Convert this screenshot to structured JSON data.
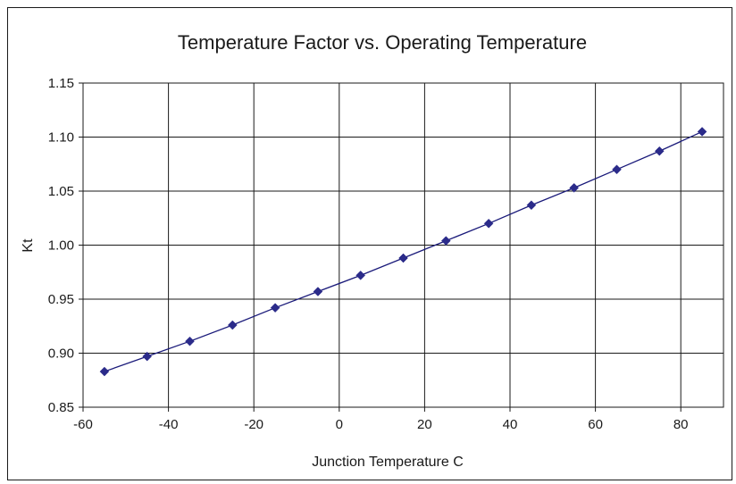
{
  "chart_data": {
    "type": "line",
    "title": "Temperature Factor vs. Operating Temperature",
    "xlabel": "Junction Temperature C",
    "ylabel": "Kt",
    "xlim": [
      -60,
      90
    ],
    "ylim": [
      0.85,
      1.15
    ],
    "xticks": [
      "-60",
      "-40",
      "-20",
      "0",
      "20",
      "40",
      "60",
      "80"
    ],
    "xtick_values": [
      -60,
      -40,
      -20,
      0,
      20,
      40,
      60,
      80
    ],
    "yticks": [
      "0.85",
      "0.90",
      "0.95",
      "1.00",
      "1.05",
      "1.10",
      "1.15"
    ],
    "ytick_values": [
      0.85,
      0.9,
      0.95,
      1.0,
      1.05,
      1.1,
      1.15
    ],
    "grid": true,
    "line_color": "#1a1a7a",
    "marker_color": "#2b2b8a",
    "marker": "diamond",
    "series": [
      {
        "x": [
          -55,
          -45,
          -35,
          -25,
          -15,
          -5,
          5,
          15,
          25,
          35,
          45,
          55,
          65,
          75,
          85
        ],
        "values": [
          0.883,
          0.897,
          0.911,
          0.926,
          0.942,
          0.957,
          0.972,
          0.988,
          1.004,
          1.02,
          1.037,
          1.053,
          1.07,
          1.087,
          1.105
        ]
      }
    ]
  }
}
